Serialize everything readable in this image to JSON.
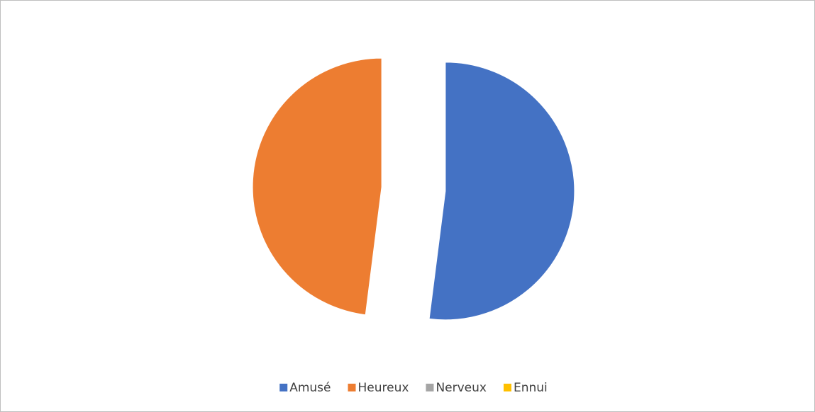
{
  "chart_data": {
    "type": "pie",
    "categories": [
      "Amusé",
      "Heureux",
      "Nerveux",
      "Ennui"
    ],
    "values": [
      52,
      48,
      0,
      0
    ],
    "colors": [
      "#4472c4",
      "#ed7d31",
      "#a5a5a5",
      "#ffc000"
    ],
    "legend": "bottom"
  }
}
